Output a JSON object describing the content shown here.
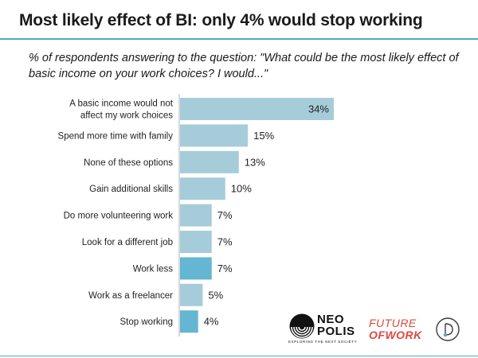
{
  "header": {
    "title": "Most likely effect of BI: only 4% would stop working",
    "subtitle": "% of respondents answering to the question: \"What could be the most likely effect of basic income on your work choices? I would...\""
  },
  "chart_data": {
    "type": "bar",
    "orientation": "horizontal",
    "categories": [
      "A basic income would not affect my work choices",
      "Spend more time with family",
      "None of these options",
      "Gain additional skills",
      "Do more volunteering work",
      "Look for a different job",
      "Work less",
      "Work as a freelancer",
      "Stop working"
    ],
    "category_lines": [
      [
        "A basic income would not",
        "affect my work choices"
      ],
      [
        "Spend more time with family"
      ],
      [
        "None of these options"
      ],
      [
        "Gain additional skills"
      ],
      [
        "Do more volunteering work"
      ],
      [
        "Look for a different job"
      ],
      [
        "Work less"
      ],
      [
        "Work as a freelancer"
      ],
      [
        "Stop working"
      ]
    ],
    "values": [
      34,
      15,
      13,
      10,
      7,
      7,
      7,
      5,
      4
    ],
    "value_labels": [
      "34%",
      "15%",
      "13%",
      "10%",
      "7%",
      "7%",
      "7%",
      "5%",
      "4%"
    ],
    "highlight": [
      false,
      false,
      false,
      false,
      false,
      false,
      true,
      false,
      true
    ],
    "colors": {
      "bar": "#a6ccd9",
      "highlight": "#64b6d3",
      "axis": "#b0b0b0",
      "label": "#222222"
    },
    "xlim": [
      0,
      34
    ],
    "title": "Most likely effect of BI: only 4% would stop working",
    "xlabel": "",
    "ylabel": ""
  },
  "logos": {
    "neopolis": {
      "line1": "NEO",
      "line2": "POLIS",
      "tagline": "EXPLORING THE NEXT SOCIETY"
    },
    "future_of_work": {
      "line1": "FUTURE",
      "line2": "OFWORK"
    },
    "d_mark": {
      "icon": "d-circle-icon"
    }
  }
}
